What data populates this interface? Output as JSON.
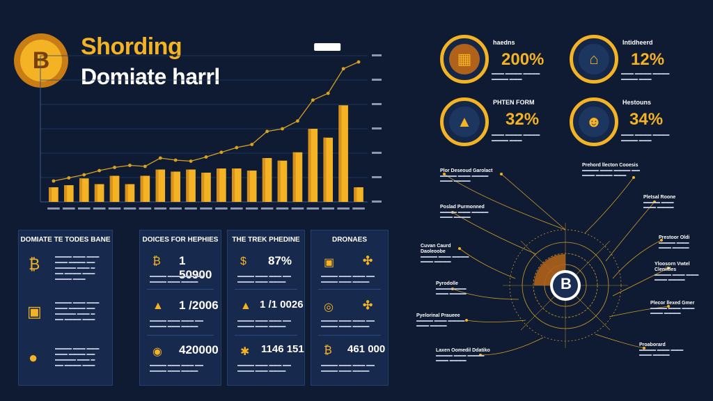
{
  "header": {
    "title_line1": "Shording",
    "title_line2": "Domiate harrl",
    "logo_symbol": "B"
  },
  "chart_data": {
    "type": "bar",
    "title": "",
    "xlabel": "",
    "ylabel": "",
    "callout": "",
    "values": [
      28,
      32,
      45,
      34,
      50,
      34,
      50,
      62,
      58,
      62,
      56,
      64,
      64,
      60,
      84,
      79,
      95,
      140,
      123,
      185,
      28
    ],
    "line_values": [
      40,
      46,
      52,
      60,
      66,
      70,
      68,
      84,
      80,
      78,
      86,
      95,
      104,
      110,
      135,
      140,
      155,
      195,
      208,
      255,
      268
    ],
    "ylim": [
      0,
      280
    ],
    "bar_color": "#f4b324",
    "line_color": "#d9a21f"
  },
  "panels": [
    {
      "header": "DOMIATE TE TODES BANE",
      "rows": [
        {
          "icon": "bitcoin-icon",
          "glyph": "₿"
        },
        {
          "icon": "wallet-icon",
          "glyph": "▣"
        },
        {
          "icon": "coin-hand-icon",
          "glyph": "●"
        }
      ]
    },
    {
      "header": "DOICES FOR HEPHIES",
      "rows": [
        {
          "icon": "bitcoin-icon",
          "glyph": "₿",
          "value": "1 50900"
        },
        {
          "icon": "pyramid-icon",
          "glyph": "▲",
          "value": "1 /2006"
        },
        {
          "icon": "coins-icon",
          "glyph": "◉",
          "value": "420000"
        }
      ]
    },
    {
      "header": "THE TREK PHEDINE",
      "rows": [
        {
          "icon": "dollar-icon",
          "glyph": "$",
          "value": "87%"
        },
        {
          "icon": "triangle-icon",
          "glyph": "▲",
          "value": "1 /1 0026"
        },
        {
          "icon": "gear-icon",
          "glyph": "✱",
          "value": "1146 151"
        }
      ]
    },
    {
      "header": "DRONAES",
      "rows": [
        {
          "icon": "wallet-icon",
          "glyph": "▣",
          "value": "✣"
        },
        {
          "icon": "target-icon",
          "glyph": "◎",
          "value": "✣"
        },
        {
          "icon": "bitcoin-icon",
          "glyph": "₿",
          "value": "461 000"
        }
      ]
    }
  ],
  "kpis": [
    {
      "label": "haedns",
      "value": "200%",
      "icon": "grid-icon",
      "glyph": "▦"
    },
    {
      "label": "Intidheerd",
      "value": "12%",
      "icon": "building-icon",
      "glyph": "⌂"
    },
    {
      "label": "PHTEN FORM",
      "value": "32%",
      "icon": "pyramid-icon",
      "glyph": "▲"
    },
    {
      "label": "Hestouns",
      "value": "34%",
      "icon": "people-icon",
      "glyph": "☻"
    }
  ],
  "radial": {
    "center_symbol": "B",
    "callouts_left": [
      "Plor Deseoud Garolact",
      "Poslad Purmonned",
      "Cuvan Caurd Daoleoobe",
      "Pyrodolle",
      "Pyelorinal Praueee",
      "Laxen Oomedil Ddatiko"
    ],
    "callouts_right": [
      "Prehord llecton Cooesis",
      "Pletsal Roone",
      "Prestoor Oldi",
      "Yloosorn Vwtel Cleniitles",
      "Plecor llexed Gmer",
      "Proaborard"
    ]
  }
}
